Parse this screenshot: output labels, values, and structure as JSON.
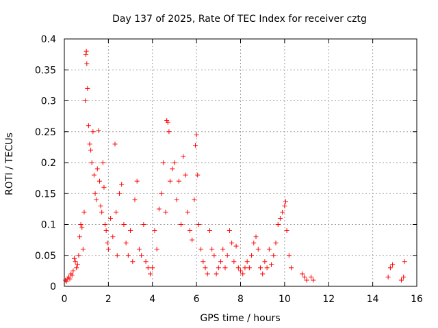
{
  "chart_data": {
    "type": "scatter",
    "title": "Day 137 of 2025, Rate Of TEC Index for receiver cztg",
    "xlabel": "GPS time / hours",
    "ylabel": "ROTI / TECUs",
    "xlim": [
      0,
      16
    ],
    "ylim": [
      0,
      0.4
    ],
    "grid": true,
    "marker": "+",
    "color": "#ff0000",
    "x_ticks": [
      0,
      2,
      4,
      6,
      8,
      10,
      12,
      14,
      16
    ],
    "x_tick_labels": [
      "0",
      "2",
      "4",
      "6",
      "8",
      "10",
      "12",
      "14",
      "16"
    ],
    "y_ticks": [
      0,
      0.05,
      0.1,
      0.15,
      0.2,
      0.25,
      0.3,
      0.35,
      0.4
    ],
    "y_tick_labels": [
      "0",
      "0.05",
      "0.1",
      "0.15",
      "0.2",
      "0.25",
      "0.3",
      "0.35",
      "0.4"
    ],
    "series": [
      {
        "name": "ROTI",
        "points": [
          [
            0.05,
            0.01
          ],
          [
            0.1,
            0.008
          ],
          [
            0.15,
            0.012
          ],
          [
            0.2,
            0.015
          ],
          [
            0.25,
            0.012
          ],
          [
            0.3,
            0.02
          ],
          [
            0.35,
            0.018
          ],
          [
            0.4,
            0.025
          ],
          [
            0.45,
            0.045
          ],
          [
            0.5,
            0.04
          ],
          [
            0.55,
            0.03
          ],
          [
            0.6,
            0.035
          ],
          [
            0.65,
            0.05
          ],
          [
            0.7,
            0.08
          ],
          [
            0.75,
            0.1
          ],
          [
            0.8,
            0.095
          ],
          [
            0.85,
            0.06
          ],
          [
            0.9,
            0.12
          ],
          [
            0.95,
            0.3
          ],
          [
            0.98,
            0.375
          ],
          [
            1.0,
            0.38
          ],
          [
            1.02,
            0.36
          ],
          [
            1.05,
            0.32
          ],
          [
            1.1,
            0.26
          ],
          [
            1.15,
            0.23
          ],
          [
            1.2,
            0.22
          ],
          [
            1.25,
            0.2
          ],
          [
            1.3,
            0.25
          ],
          [
            1.35,
            0.18
          ],
          [
            1.4,
            0.15
          ],
          [
            1.45,
            0.14
          ],
          [
            1.5,
            0.19
          ],
          [
            1.55,
            0.252
          ],
          [
            1.6,
            0.17
          ],
          [
            1.65,
            0.13
          ],
          [
            1.7,
            0.12
          ],
          [
            1.75,
            0.2
          ],
          [
            1.8,
            0.16
          ],
          [
            1.85,
            0.1
          ],
          [
            1.9,
            0.09
          ],
          [
            1.95,
            0.07
          ],
          [
            2.0,
            0.06
          ],
          [
            2.1,
            0.11
          ],
          [
            2.2,
            0.08
          ],
          [
            2.3,
            0.23
          ],
          [
            2.35,
            0.12
          ],
          [
            2.4,
            0.05
          ],
          [
            2.5,
            0.15
          ],
          [
            2.6,
            0.165
          ],
          [
            2.7,
            0.1
          ],
          [
            2.8,
            0.07
          ],
          [
            2.9,
            0.05
          ],
          [
            3.0,
            0.09
          ],
          [
            3.1,
            0.04
          ],
          [
            3.2,
            0.14
          ],
          [
            3.3,
            0.17
          ],
          [
            3.4,
            0.06
          ],
          [
            3.5,
            0.05
          ],
          [
            3.6,
            0.1
          ],
          [
            3.7,
            0.04
          ],
          [
            3.8,
            0.03
          ],
          [
            3.9,
            0.02
          ],
          [
            4.0,
            0.03
          ],
          [
            4.1,
            0.09
          ],
          [
            4.2,
            0.06
          ],
          [
            4.3,
            0.125
          ],
          [
            4.4,
            0.15
          ],
          [
            4.5,
            0.2
          ],
          [
            4.6,
            0.12
          ],
          [
            4.65,
            0.268
          ],
          [
            4.7,
            0.265
          ],
          [
            4.75,
            0.25
          ],
          [
            4.8,
            0.17
          ],
          [
            4.9,
            0.19
          ],
          [
            5.0,
            0.2
          ],
          [
            5.1,
            0.14
          ],
          [
            5.2,
            0.17
          ],
          [
            5.3,
            0.1
          ],
          [
            5.4,
            0.21
          ],
          [
            5.5,
            0.18
          ],
          [
            5.6,
            0.12
          ],
          [
            5.7,
            0.09
          ],
          [
            5.8,
            0.075
          ],
          [
            5.9,
            0.14
          ],
          [
            5.95,
            0.228
          ],
          [
            6.0,
            0.245
          ],
          [
            6.05,
            0.18
          ],
          [
            6.1,
            0.1
          ],
          [
            6.2,
            0.06
          ],
          [
            6.3,
            0.04
          ],
          [
            6.4,
            0.03
          ],
          [
            6.5,
            0.02
          ],
          [
            6.6,
            0.09
          ],
          [
            6.7,
            0.06
          ],
          [
            6.8,
            0.05
          ],
          [
            6.9,
            0.02
          ],
          [
            7.0,
            0.03
          ],
          [
            7.1,
            0.04
          ],
          [
            7.2,
            0.06
          ],
          [
            7.3,
            0.03
          ],
          [
            7.4,
            0.05
          ],
          [
            7.5,
            0.09
          ],
          [
            7.6,
            0.07
          ],
          [
            7.7,
            0.04
          ],
          [
            7.8,
            0.065
          ],
          [
            7.9,
            0.03
          ],
          [
            8.0,
            0.025
          ],
          [
            8.1,
            0.02
          ],
          [
            8.2,
            0.03
          ],
          [
            8.3,
            0.04
          ],
          [
            8.4,
            0.03
          ],
          [
            8.5,
            0.05
          ],
          [
            8.6,
            0.07
          ],
          [
            8.7,
            0.08
          ],
          [
            8.8,
            0.06
          ],
          [
            8.9,
            0.03
          ],
          [
            9.0,
            0.02
          ],
          [
            9.1,
            0.04
          ],
          [
            9.2,
            0.03
          ],
          [
            9.3,
            0.06
          ],
          [
            9.4,
            0.035
          ],
          [
            9.5,
            0.05
          ],
          [
            9.6,
            0.07
          ],
          [
            9.7,
            0.1
          ],
          [
            9.8,
            0.11
          ],
          [
            9.9,
            0.12
          ],
          [
            10.0,
            0.13
          ],
          [
            10.05,
            0.137
          ],
          [
            10.1,
            0.09
          ],
          [
            10.2,
            0.05
          ],
          [
            10.3,
            0.03
          ],
          [
            10.8,
            0.02
          ],
          [
            10.9,
            0.015
          ],
          [
            11.0,
            0.01
          ],
          [
            11.2,
            0.015
          ],
          [
            11.3,
            0.01
          ],
          [
            14.7,
            0.015
          ],
          [
            14.8,
            0.03
          ],
          [
            14.9,
            0.035
          ],
          [
            15.3,
            0.01
          ],
          [
            15.4,
            0.015
          ],
          [
            15.45,
            0.04
          ]
        ]
      }
    ]
  }
}
